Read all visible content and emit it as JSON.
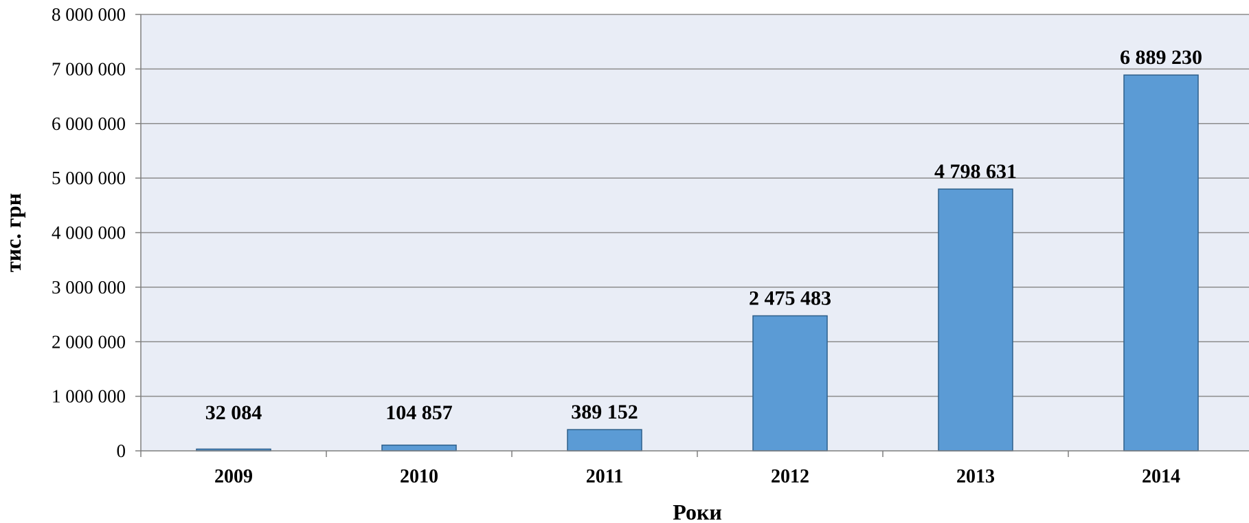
{
  "chart_data": {
    "type": "bar",
    "title": "",
    "xlabel": "Роки",
    "ylabel": "тис. грн",
    "categories": [
      "2009",
      "2010",
      "2011",
      "2012",
      "2013",
      "2014"
    ],
    "values": [
      32084,
      104857,
      389152,
      2475483,
      4798631,
      6889230
    ],
    "value_labels": [
      "32 084",
      "104 857",
      "389 152",
      "2 475 483",
      "4 798 631",
      "6 889 230"
    ],
    "yticks": [
      0,
      1000000,
      2000000,
      3000000,
      4000000,
      5000000,
      6000000,
      7000000,
      8000000
    ],
    "ytick_labels": [
      "0",
      "1 000 000",
      "2 000 000",
      "3 000 000",
      "4 000 000",
      "5 000 000",
      "6 000 000",
      "7 000 000",
      "8 000 000"
    ],
    "ylim": [
      0,
      8000000
    ],
    "grid": true,
    "legend": "none",
    "colors": {
      "bar": "#5b9bd5",
      "bar_edge": "#2e5f8a",
      "plot_bg": "#e9edf6",
      "grid": "#8c8c8c",
      "axis": "#7f7f7f"
    }
  }
}
